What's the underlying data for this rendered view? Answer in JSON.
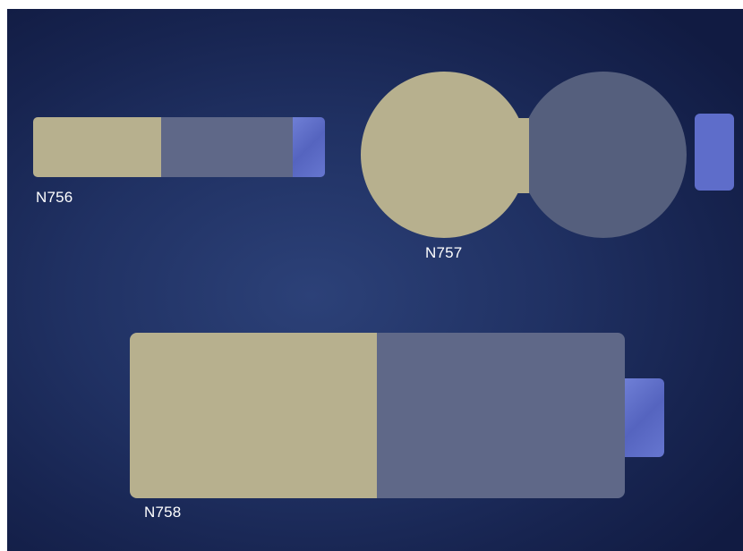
{
  "items": [
    {
      "label": "N756"
    },
    {
      "label": "N757"
    },
    {
      "label": "N758"
    }
  ],
  "colors": {
    "beige": "#b7b08e",
    "slate": "#5f6888",
    "tab_blue": "#5a68c6",
    "background": "#1d2d5e"
  }
}
